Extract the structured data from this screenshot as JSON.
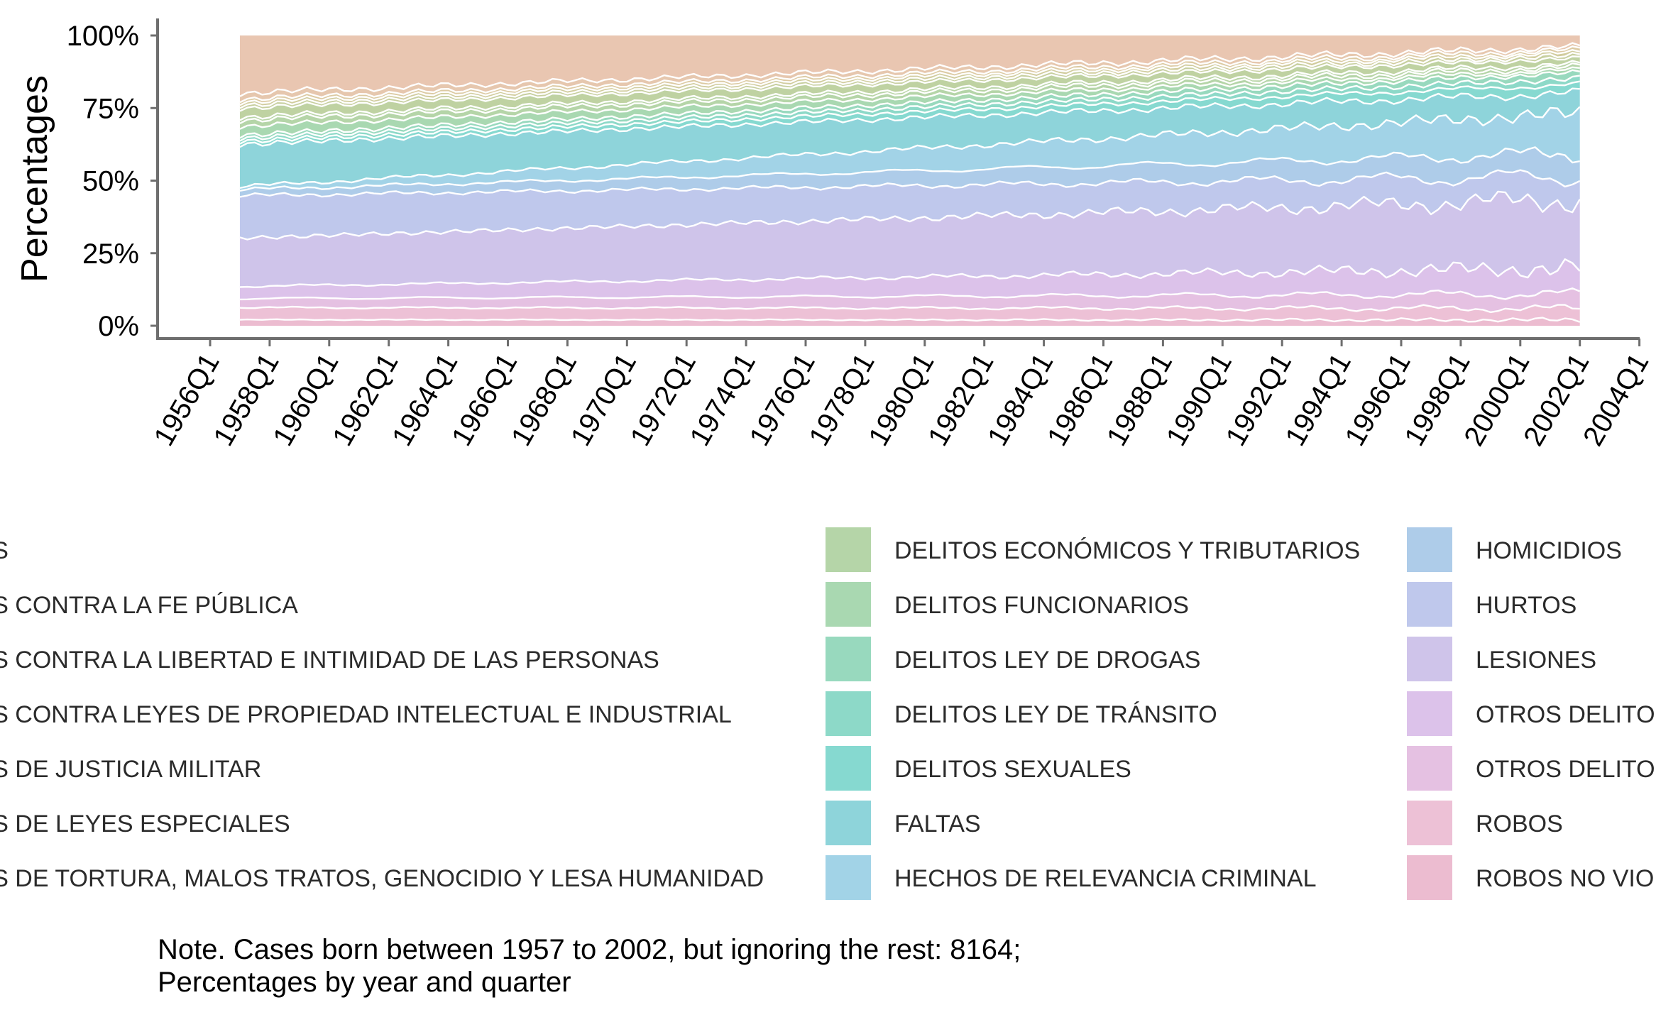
{
  "chart_data": {
    "type": "area",
    "stacked": true,
    "normalized": true,
    "ylabel": "Percentages",
    "xlabel": "",
    "y_ticks": [
      "0%",
      "25%",
      "50%",
      "75%",
      "100%"
    ],
    "ylim": [
      0,
      100
    ],
    "x_ticks": [
      "1956Q1",
      "1958Q1",
      "1960Q1",
      "1962Q1",
      "1964Q1",
      "1966Q1",
      "1968Q1",
      "1970Q1",
      "1972Q1",
      "1974Q1",
      "1976Q1",
      "1978Q1",
      "1980Q1",
      "1982Q1",
      "1984Q1",
      "1986Q1",
      "1988Q1",
      "1990Q1",
      "1992Q1",
      "1994Q1",
      "1996Q1",
      "1998Q1",
      "2000Q1",
      "2002Q1",
      "2004Q1"
    ],
    "x_range": [
      "1957Q1",
      "2002Q1"
    ],
    "legend_position": "bottom",
    "legend_columns": [
      [
        "DELITOS",
        "DELITOS CONTRA LA FE PÚBLICA",
        "DELITOS CONTRA LA LIBERTAD E INTIMIDAD DE LAS PERSONAS",
        "DELITOS CONTRA LEYES DE PROPIEDAD INTELECTUAL E INDUSTRIAL",
        "DELITOS DE JUSTICIA MILITAR",
        "DELITOS DE LEYES ESPECIALES",
        "DELITOS DE TORTURA, MALOS TRATOS, GENOCIDIO Y LESA HUMANIDAD"
      ],
      [
        "DELITOS ECONÓMICOS Y TRIBUTARIOS",
        "DELITOS FUNCIONARIOS",
        "DELITOS LEY DE DROGAS",
        "DELITOS LEY DE TRÁNSITO",
        "DELITOS SEXUALES",
        "FALTAS",
        "HECHOS DE RELEVANCIA CRIMINAL"
      ],
      [
        "HOMICIDIOS",
        "HURTOS",
        "LESIONES",
        "OTROS DELITOS",
        "OTROS DELITOS",
        "ROBOS",
        "ROBOS NO VIOLENTOS"
      ]
    ],
    "legend_colors": [
      [
        "#e9c6b1",
        "#e6c7ae",
        "#dccaa3",
        "#d1cc9e",
        "#c7cf9f",
        "#bfd2a2",
        "#b8d4a6"
      ],
      [
        "#b5d5a8",
        "#a9d8b1",
        "#98d9be",
        "#8dd9c8",
        "#86d9d0",
        "#8ed4da",
        "#a2d3e7"
      ],
      [
        "#aecce9",
        "#bfc8ec",
        "#cfc4ea",
        "#dcc2ea",
        "#e5c1e2",
        "#edc1d6",
        "#ecbcd0"
      ]
    ],
    "series": [
      {
        "name": "ROBOS NO VIOLENTOS",
        "color": "#ecbcd0",
        "start": 2,
        "end": 2
      },
      {
        "name": "ROBOS",
        "color": "#edc1d6",
        "start": 4,
        "end": 4
      },
      {
        "name": "OTROS DELITOS",
        "color": "#e5c1e2",
        "start": 3,
        "end": 5
      },
      {
        "name": "OTROS DELITOS",
        "color": "#dcc2ea",
        "start": 4,
        "end": 9
      },
      {
        "name": "LESIONES",
        "color": "#cfc4ea",
        "start": 16,
        "end": 24
      },
      {
        "name": "HURTOS",
        "color": "#bfc8ec",
        "start": 14,
        "end": 8
      },
      {
        "name": "HOMICIDIOS",
        "color": "#aecce9",
        "start": 2,
        "end": 8
      },
      {
        "name": "HECHOS DE RELEVANCIA CRIMINAL",
        "color": "#a2d3e7",
        "start": 1,
        "end": 14
      },
      {
        "name": "FALTAS",
        "color": "#8ed4da",
        "start": 14,
        "end": 7
      },
      {
        "name": "DELITOS SEXUALES",
        "color": "#86d9d0",
        "start": 1,
        "end": 3
      },
      {
        "name": "DELITOS LEY DE TRÁNSITO",
        "color": "#8dd9c8",
        "start": 1,
        "end": 2
      },
      {
        "name": "DELITOS LEY DE DROGAS",
        "color": "#98d9be",
        "start": 1,
        "end": 2
      },
      {
        "name": "DELITOS FUNCIONARIOS",
        "color": "#a9d8b1",
        "start": 3,
        "end": 1
      },
      {
        "name": "DELITOS ECONÓMICOS Y TRIBUTARIOS",
        "color": "#b5d5a8",
        "start": 2,
        "end": 1
      },
      {
        "name": "DELITOS DE TORTURA, MALOS TRATOS, GENOCIDIO Y LESA HUMANIDAD",
        "color": "#b8d4a6",
        "start": 1,
        "end": 1
      },
      {
        "name": "DELITOS DE LEYES ESPECIALES",
        "color": "#bfd2a2",
        "start": 3,
        "end": 2
      },
      {
        "name": "DELITOS DE JUSTICIA MILITAR",
        "color": "#c7cf9f",
        "start": 1,
        "end": 1
      },
      {
        "name": "DELITOS CONTRA LEYES DE PROPIEDAD INTELECTUAL E INDUSTRIAL",
        "color": "#d1cc9e",
        "start": 1,
        "end": 1
      },
      {
        "name": "DELITOS CONTRA LA LIBERTAD E INTIMIDAD DE LAS PERSONAS",
        "color": "#dccaa3",
        "start": 1,
        "end": 1
      },
      {
        "name": "DELITOS CONTRA LA FE PÚBLICA",
        "color": "#e6c7ae",
        "start": 2,
        "end": 1
      },
      {
        "name": "DELITOS",
        "color": "#e9c6b1",
        "start": 19,
        "end": 4
      }
    ],
    "note": [
      "Note. Cases born between 1957 to 2002, but ignoring the rest: 8164;",
      "Percentages by year and quarter"
    ]
  }
}
